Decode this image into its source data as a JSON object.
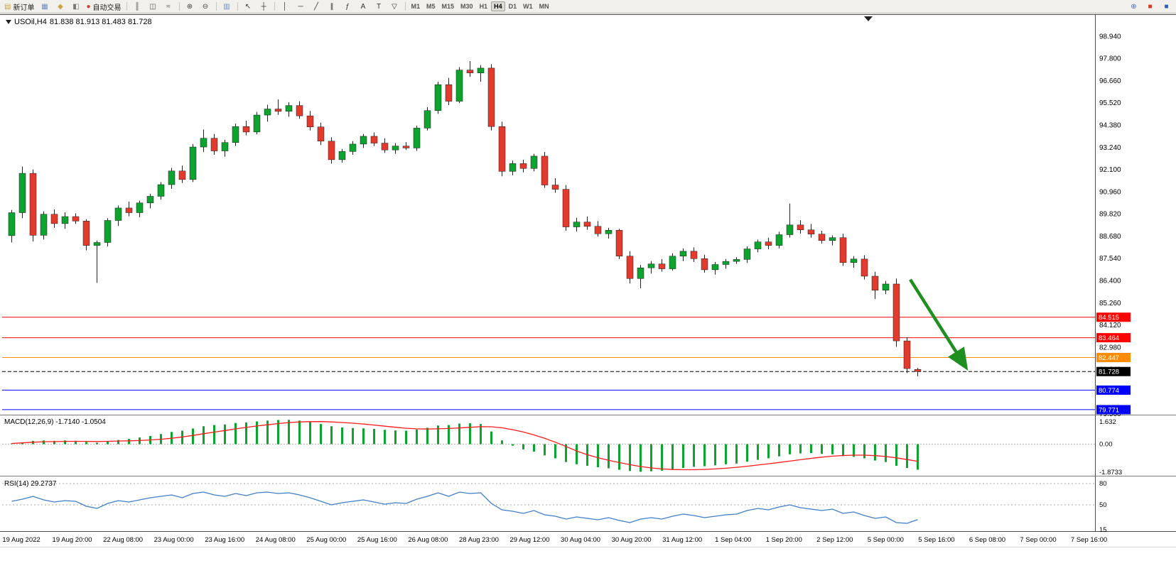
{
  "toolbar": {
    "items": [
      {
        "name": "new-order-button",
        "glyph": "▤",
        "color": "#caa53d",
        "label": "新订单"
      },
      {
        "name": "chart-window-icon",
        "glyph": "▦",
        "color": "#6b8cba"
      },
      {
        "name": "profile-icon",
        "glyph": "◆",
        "color": "#caa53d"
      },
      {
        "name": "market-sound-icon",
        "glyph": "◧",
        "color": "#777777"
      },
      {
        "name": "autotrading-button",
        "glyph": "●",
        "color": "#d43c2a",
        "label": "自动交易"
      },
      {
        "sep": true
      },
      {
        "name": "ohlc-bars-icon",
        "glyph": "║",
        "color": "#555555"
      },
      {
        "name": "candlestick-icon",
        "glyph": "◫",
        "color": "#555555"
      },
      {
        "name": "line-chart-icon",
        "glyph": "≈",
        "color": "#555555"
      },
      {
        "sep": true
      },
      {
        "name": "zoom-in-icon",
        "glyph": "⊕",
        "color": "#444444"
      },
      {
        "name": "zoom-out-icon",
        "glyph": "⊖",
        "color": "#444444"
      },
      {
        "sep": true
      },
      {
        "name": "tile-windows-icon",
        "glyph": "▥",
        "color": "#6b8cba"
      },
      {
        "sep": true
      },
      {
        "name": "cursor-icon",
        "glyph": "↖",
        "color": "#333333"
      },
      {
        "name": "crosshair-icon",
        "glyph": "┼",
        "color": "#333333"
      },
      {
        "sep": true
      },
      {
        "name": "vertical-line-icon",
        "glyph": "│",
        "color": "#333333"
      },
      {
        "name": "horizontal-line-icon",
        "glyph": "─",
        "color": "#333333"
      },
      {
        "name": "trendline-icon",
        "glyph": "╱",
        "color": "#333333"
      },
      {
        "name": "equidistant-channel-icon",
        "glyph": "∥",
        "color": "#333333"
      },
      {
        "name": "fibonacci-icon",
        "glyph": "ƒ",
        "color": "#333333"
      },
      {
        "name": "text-icon",
        "glyph": "A",
        "color": "#333333"
      },
      {
        "name": "text-label-icon",
        "glyph": "T",
        "color": "#333333"
      },
      {
        "name": "arrows-icon",
        "glyph": "▽",
        "color": "#333333"
      },
      {
        "sep": true
      }
    ],
    "timeframes": {
      "options": [
        "M1",
        "M5",
        "M15",
        "M30",
        "H1",
        "H4",
        "D1",
        "W1",
        "MN"
      ],
      "active": "H4"
    },
    "right_items": [
      {
        "name": "magnifier-icon",
        "glyph": "⊕",
        "color": "#3a6ec0"
      },
      {
        "name": "red-status-icon",
        "glyph": "■",
        "color": "#d43c2a"
      },
      {
        "name": "blue-status-icon",
        "glyph": "■",
        "color": "#2e5fc0"
      }
    ]
  },
  "chart": {
    "symbol_period": "USOil,H4",
    "ohlc": "81.838 81.913 81.483 81.728",
    "macd_label": "MACD(12,26,9) -1.7140 -1.0504",
    "rsi_label": "RSI(14) 29.2737"
  },
  "chart_data": [
    {
      "id": "price",
      "type": "candlestick",
      "title": "USOil,H4",
      "bull_color": "#0ca32e",
      "bear_color": "#e23b2e",
      "y_axis_labels": [
        "98.940",
        "97.800",
        "96.660",
        "95.520",
        "94.380",
        "93.240",
        "92.100",
        "90.960",
        "89.820",
        "88.680",
        "87.540",
        "86.400",
        "85.260",
        "84.120",
        "82.980",
        "81.840",
        "80.700",
        "79.560"
      ],
      "x_axis_labels": [
        "19 Aug 2022",
        "19 Aug 20:00",
        "22 Aug 08:00",
        "23 Aug 00:00",
        "23 Aug 16:00",
        "24 Aug 08:00",
        "25 Aug 00:00",
        "25 Aug 16:00",
        "26 Aug 08:00",
        "28 Aug 23:00",
        "29 Aug 12:00",
        "30 Aug 04:00",
        "30 Aug 20:00",
        "31 Aug 12:00",
        "1 Sep 04:00",
        "1 Sep 20:00",
        "2 Sep 12:00",
        "5 Sep 00:00",
        "5 Sep 16:00",
        "6 Sep 08:00",
        "7 Sep 00:00",
        "7 Sep 16:00"
      ],
      "candles": [
        [
          88.7,
          90.02,
          88.35,
          89.88
        ],
        [
          89.88,
          92.25,
          89.6,
          91.9
        ],
        [
          91.9,
          92.1,
          88.4,
          88.72
        ],
        [
          88.72,
          89.95,
          88.5,
          89.8
        ],
        [
          89.8,
          90.05,
          89.1,
          89.32
        ],
        [
          89.32,
          89.9,
          89.05,
          89.68
        ],
        [
          89.68,
          89.85,
          89.3,
          89.45
        ],
        [
          89.45,
          89.55,
          87.95,
          88.2
        ],
        [
          88.2,
          88.45,
          86.28,
          88.35
        ],
        [
          88.35,
          89.6,
          88.15,
          89.48
        ],
        [
          89.48,
          90.25,
          89.2,
          90.12
        ],
        [
          90.12,
          90.45,
          89.7,
          89.88
        ],
        [
          89.88,
          90.5,
          89.65,
          90.38
        ],
        [
          90.38,
          90.85,
          90.1,
          90.72
        ],
        [
          90.72,
          91.45,
          90.55,
          91.32
        ],
        [
          91.32,
          92.18,
          91.1,
          92.02
        ],
        [
          92.02,
          92.3,
          91.4,
          91.58
        ],
        [
          91.58,
          93.4,
          91.45,
          93.25
        ],
        [
          93.25,
          94.15,
          93.0,
          93.7
        ],
        [
          93.7,
          93.92,
          92.85,
          93.05
        ],
        [
          93.05,
          93.62,
          92.75,
          93.48
        ],
        [
          93.48,
          94.45,
          93.3,
          94.3
        ],
        [
          94.3,
          94.6,
          93.85,
          94.02
        ],
        [
          94.02,
          95.05,
          93.9,
          94.89
        ],
        [
          94.89,
          95.42,
          94.55,
          95.2
        ],
        [
          95.2,
          95.69,
          94.9,
          95.08
        ],
        [
          95.08,
          95.55,
          94.8,
          95.38
        ],
        [
          95.38,
          95.6,
          94.7,
          94.85
        ],
        [
          94.85,
          95.1,
          94.1,
          94.28
        ],
        [
          94.28,
          94.5,
          93.35,
          93.55
        ],
        [
          93.55,
          93.75,
          92.4,
          92.6
        ],
        [
          92.6,
          93.15,
          92.45,
          93.02
        ],
        [
          93.02,
          93.55,
          92.85,
          93.4
        ],
        [
          93.4,
          93.92,
          93.2,
          93.8
        ],
        [
          93.8,
          94.0,
          93.3,
          93.45
        ],
        [
          93.45,
          93.7,
          92.95,
          93.1
        ],
        [
          93.1,
          93.45,
          92.9,
          93.3
        ],
        [
          93.3,
          93.5,
          93.1,
          93.2
        ],
        [
          93.2,
          94.35,
          93.05,
          94.22
        ],
        [
          94.22,
          95.3,
          94.1,
          95.12
        ],
        [
          95.12,
          96.6,
          94.95,
          96.45
        ],
        [
          96.45,
          96.8,
          95.4,
          95.6
        ],
        [
          95.6,
          97.35,
          95.5,
          97.2
        ],
        [
          97.2,
          97.66,
          96.85,
          97.05
        ],
        [
          97.05,
          97.45,
          96.6,
          97.3
        ],
        [
          97.3,
          97.5,
          94.1,
          94.3
        ],
        [
          94.3,
          94.55,
          91.75,
          92.0
        ],
        [
          92.0,
          92.55,
          91.8,
          92.4
        ],
        [
          92.4,
          92.6,
          91.95,
          92.15
        ],
        [
          92.15,
          92.9,
          92.0,
          92.78
        ],
        [
          92.78,
          93.0,
          91.15,
          91.3
        ],
        [
          91.3,
          91.65,
          90.9,
          91.08
        ],
        [
          91.08,
          91.3,
          88.95,
          89.15
        ],
        [
          89.15,
          89.62,
          88.92,
          89.4
        ],
        [
          89.4,
          89.68,
          89.0,
          89.18
        ],
        [
          89.18,
          89.45,
          88.65,
          88.8
        ],
        [
          88.8,
          89.1,
          88.55,
          88.98
        ],
        [
          88.98,
          89.05,
          87.5,
          87.65
        ],
        [
          87.65,
          87.9,
          86.25,
          86.5
        ],
        [
          86.5,
          87.2,
          86.0,
          87.05
        ],
        [
          87.05,
          87.4,
          86.75,
          87.25
        ],
        [
          87.25,
          87.5,
          86.85,
          87.0
        ],
        [
          87.0,
          87.8,
          86.9,
          87.65
        ],
        [
          87.65,
          88.05,
          87.4,
          87.9
        ],
        [
          87.9,
          88.1,
          87.35,
          87.52
        ],
        [
          87.52,
          87.72,
          86.8,
          86.95
        ],
        [
          86.95,
          87.35,
          86.7,
          87.22
        ],
        [
          87.22,
          87.5,
          87.0,
          87.38
        ],
        [
          87.38,
          87.6,
          87.25,
          87.48
        ],
        [
          87.48,
          88.15,
          87.3,
          88.02
        ],
        [
          88.02,
          88.5,
          87.85,
          88.38
        ],
        [
          88.38,
          88.6,
          88.0,
          88.2
        ],
        [
          88.2,
          88.9,
          88.05,
          88.75
        ],
        [
          88.75,
          90.35,
          88.6,
          89.25
        ],
        [
          89.25,
          89.5,
          88.8,
          89.0
        ],
        [
          89.0,
          89.3,
          88.6,
          88.78
        ],
        [
          88.78,
          88.95,
          88.3,
          88.45
        ],
        [
          88.45,
          88.72,
          88.2,
          88.6
        ],
        [
          88.6,
          88.8,
          87.15,
          87.32
        ],
        [
          87.32,
          87.65,
          87.05,
          87.5
        ],
        [
          87.5,
          87.7,
          86.45,
          86.62
        ],
        [
          86.62,
          86.85,
          85.45,
          85.9
        ],
        [
          85.9,
          86.38,
          85.7,
          86.22
        ],
        [
          86.22,
          86.5,
          83.0,
          83.3
        ],
        [
          83.3,
          83.48,
          81.65,
          81.88
        ],
        [
          81.838,
          81.913,
          81.483,
          81.728
        ]
      ],
      "hlines": [
        {
          "value": 84.515,
          "label": "84.515",
          "color": "#ff0000"
        },
        {
          "value": 83.464,
          "label": "83.464",
          "color": "#ff0000"
        },
        {
          "value": 82.447,
          "label": "82.447",
          "color": "#ff8c00"
        },
        {
          "value": 81.728,
          "label": "81.728",
          "color": "#000000",
          "dashed": true
        },
        {
          "value": 80.774,
          "label": "80.774",
          "color": "#0000ff"
        },
        {
          "value": 79.771,
          "label": "79.771",
          "color": "#0000ff"
        }
      ],
      "current_price": 81.728,
      "arrow": {
        "from_index": 84.3,
        "from_price": 86.45,
        "to_index": 89.4,
        "to_price": 82.05,
        "color": "#1f8f1f"
      }
    },
    {
      "id": "macd",
      "type": "bar",
      "label": "MACD(12,26,9)",
      "value_main": "-1.7140",
      "value_signal": "-1.0504",
      "bar_color": "#0ca32e",
      "signal_color": "#ff1a1a",
      "signal_period": 9,
      "y_axis_labels": [
        "1.632",
        "0.00",
        "-1.8733"
      ],
      "values": [
        0.05,
        0.12,
        0.22,
        0.25,
        0.22,
        0.25,
        0.22,
        0.15,
        0.1,
        0.18,
        0.28,
        0.35,
        0.45,
        0.55,
        0.68,
        0.82,
        0.9,
        1.05,
        1.2,
        1.28,
        1.32,
        1.42,
        1.45,
        1.52,
        1.58,
        1.62,
        1.63,
        1.58,
        1.48,
        1.35,
        1.2,
        1.12,
        1.08,
        1.06,
        1.02,
        0.96,
        0.92,
        0.9,
        0.98,
        1.1,
        1.25,
        1.28,
        1.38,
        1.4,
        1.35,
        0.85,
        0.25,
        -0.1,
        -0.35,
        -0.5,
        -0.75,
        -0.95,
        -1.2,
        -1.35,
        -1.45,
        -1.55,
        -1.62,
        -1.72,
        -1.8,
        -1.85,
        -1.82,
        -1.78,
        -1.7,
        -1.6,
        -1.52,
        -1.48,
        -1.42,
        -1.35,
        -1.3,
        -1.18,
        -1.05,
        -0.95,
        -0.82,
        -0.68,
        -0.62,
        -0.6,
        -0.65,
        -0.68,
        -0.8,
        -0.85,
        -0.95,
        -1.1,
        -1.2,
        -1.45,
        -1.6,
        -1.714
      ]
    },
    {
      "id": "rsi",
      "type": "line",
      "label": "RSI(14)",
      "value": "29.2737",
      "line_color": "#3f7fca",
      "levels": [
        80,
        50
      ],
      "y_axis_labels": [
        "80",
        "50",
        "15"
      ],
      "values": [
        55,
        58,
        62,
        57,
        54,
        56,
        55,
        48,
        45,
        52,
        56,
        54,
        57,
        60,
        62,
        64,
        60,
        66,
        68,
        64,
        62,
        66,
        63,
        67,
        68,
        66,
        67,
        64,
        60,
        55,
        50,
        53,
        55,
        57,
        54,
        51,
        53,
        52,
        58,
        62,
        67,
        62,
        68,
        66,
        67,
        52,
        43,
        41,
        38,
        42,
        36,
        34,
        30,
        33,
        31,
        29,
        32,
        28,
        25,
        30,
        32,
        30,
        34,
        37,
        35,
        32,
        34,
        36,
        37,
        42,
        45,
        43,
        47,
        50,
        46,
        44,
        42,
        44,
        38,
        40,
        35,
        31,
        33,
        25,
        24,
        29.27
      ]
    }
  ]
}
